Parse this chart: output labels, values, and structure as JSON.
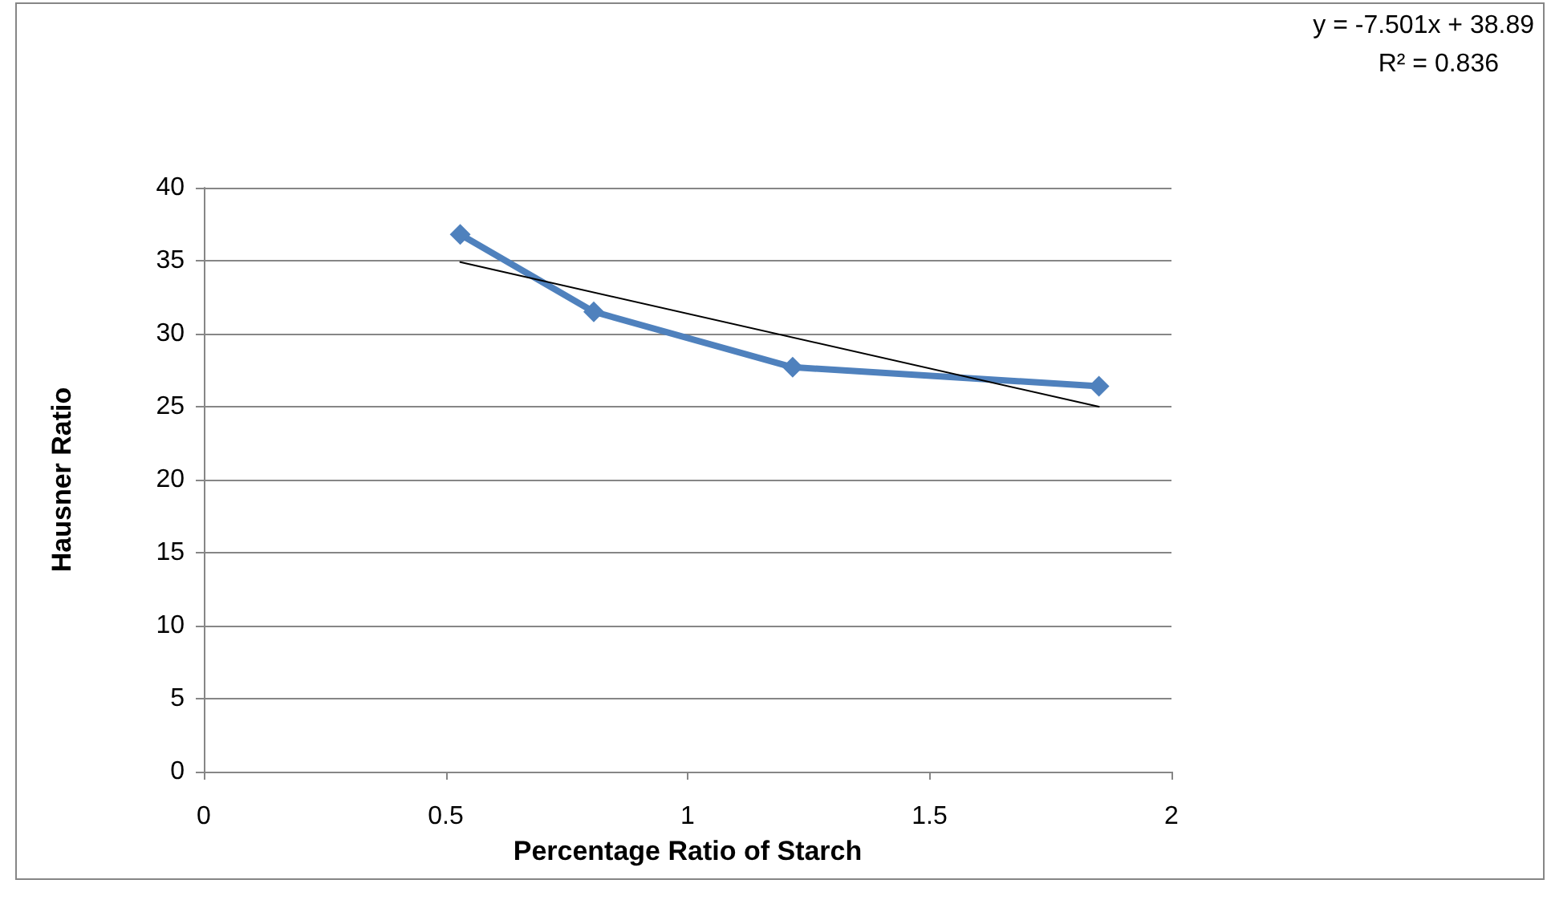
{
  "chart_data": {
    "type": "line",
    "xlabel": "Percentage Ratio of Starch",
    "ylabel": "Hausner Ratio",
    "annotations": [
      "y = -7.501x + 38.89",
      "R² = 0.836"
    ],
    "series": [
      {
        "color": "#4f81bd",
        "x": [
          0.53,
          0.806,
          1.217,
          1.85
        ],
        "values": [
          36.8,
          31.5,
          27.7,
          26.4
        ],
        "marker": "diamond"
      },
      {
        "type": "line",
        "color": "#000000",
        "x": [
          0.53,
          1.85
        ],
        "values": [
          34.9,
          25.0
        ],
        "marker": "none"
      }
    ],
    "xlim": [
      0,
      2
    ],
    "xticks": [
      0,
      0.5,
      1,
      1.5,
      2
    ],
    "ylim": [
      0,
      40
    ],
    "yticks": [
      0,
      5,
      10,
      15,
      20,
      25,
      30,
      35,
      40
    ],
    "grid": "y"
  }
}
